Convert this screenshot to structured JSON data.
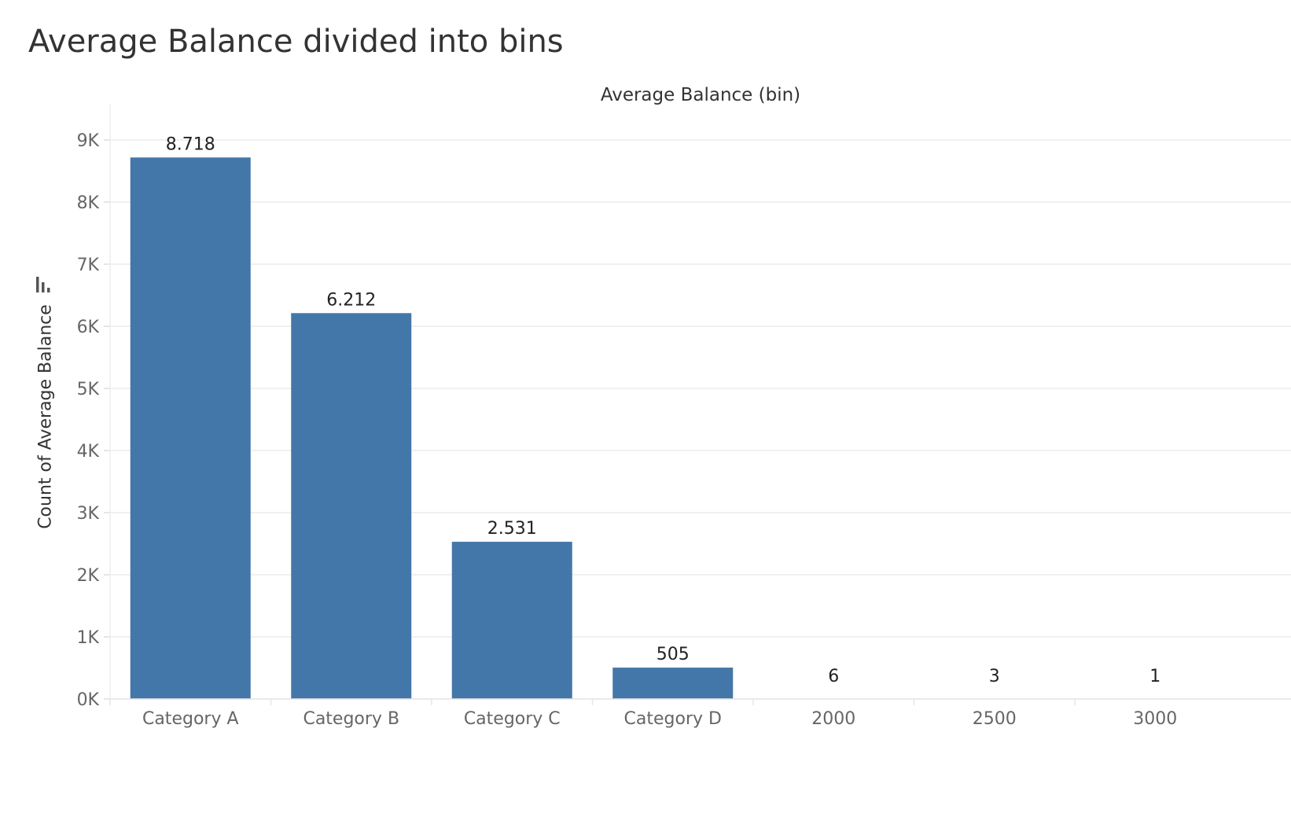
{
  "title": "Average Balance divided into bins",
  "chart_data": {
    "type": "bar",
    "title": "Average Balance divided into bins",
    "xlabel": "Average Balance (bin)",
    "ylabel": "Count of Average Balance",
    "categories": [
      "Category A",
      "Category B",
      "Category C",
      "Category D",
      "2000",
      "2500",
      "3000"
    ],
    "values": [
      8718,
      6212,
      2531,
      505,
      6,
      3,
      1
    ],
    "data_labels": [
      "8.718",
      "6.212",
      "2.531",
      "505",
      "6",
      "3",
      "1"
    ],
    "ylim": [
      0,
      9000
    ],
    "yticks": [
      0,
      1000,
      2000,
      3000,
      4000,
      5000,
      6000,
      7000,
      8000,
      9000
    ],
    "ytick_labels": [
      "0K",
      "1K",
      "2K",
      "3K",
      "4K",
      "5K",
      "6K",
      "7K",
      "8K",
      "9K"
    ],
    "grid": true,
    "legend": "none",
    "bar_color": "#4477a9"
  },
  "icons": {
    "sort": "sort-descending-icon"
  }
}
